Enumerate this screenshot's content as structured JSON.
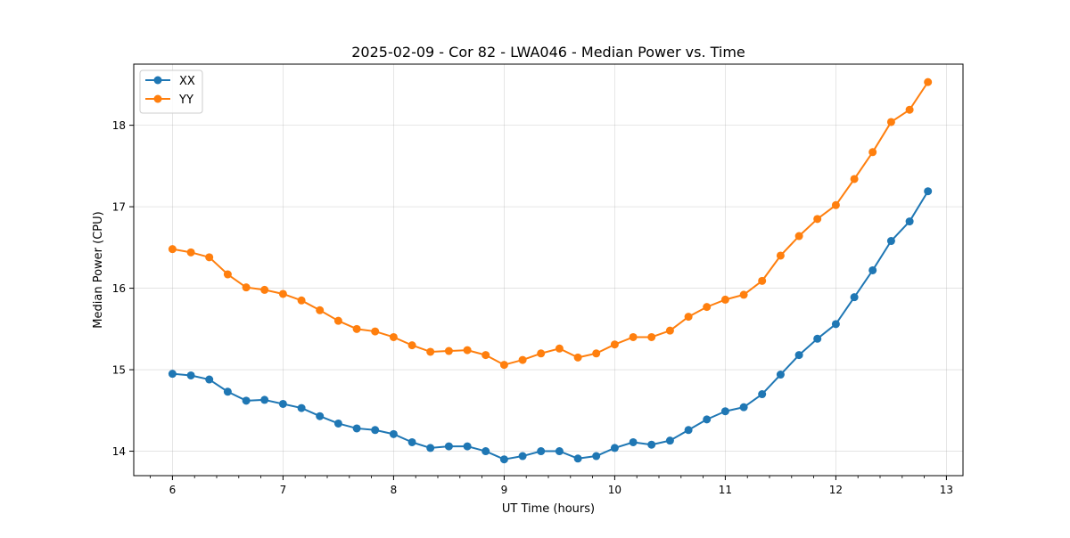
{
  "chart_data": {
    "type": "line",
    "title": "2025-02-09 - Cor 82 - LWA046 - Median Power vs. Time",
    "xlabel": "UT Time (hours)",
    "ylabel": "Median Power (CPU)",
    "xlim": [
      5.65,
      13.15
    ],
    "ylim": [
      13.7,
      18.75
    ],
    "xticks": [
      6,
      7,
      8,
      9,
      10,
      11,
      12,
      13
    ],
    "yticks": [
      14,
      15,
      16,
      17,
      18
    ],
    "grid": true,
    "legend_position": "top-left",
    "x": [
      6.0,
      6.167,
      6.333,
      6.5,
      6.667,
      6.833,
      7.0,
      7.167,
      7.333,
      7.5,
      7.667,
      7.833,
      8.0,
      8.167,
      8.333,
      8.5,
      8.667,
      8.833,
      9.0,
      9.167,
      9.333,
      9.5,
      9.667,
      9.833,
      10.0,
      10.167,
      10.333,
      10.5,
      10.667,
      10.833,
      11.0,
      11.167,
      11.333,
      11.5,
      11.667,
      11.833,
      12.0,
      12.167,
      12.333,
      12.5,
      12.667,
      12.833
    ],
    "series": [
      {
        "name": "XX",
        "color": "#1f77b4",
        "values": [
          14.95,
          14.93,
          14.88,
          14.73,
          14.62,
          14.63,
          14.58,
          14.53,
          14.43,
          14.34,
          14.28,
          14.26,
          14.21,
          14.11,
          14.04,
          14.06,
          14.06,
          14.0,
          13.9,
          13.94,
          14.0,
          14.0,
          13.91,
          13.94,
          14.04,
          14.11,
          14.08,
          14.13,
          14.26,
          14.39,
          14.49,
          14.54,
          14.7,
          14.94,
          15.18,
          15.38,
          15.56,
          15.89,
          16.22,
          16.58,
          16.82,
          17.19
        ]
      },
      {
        "name": "YY",
        "color": "#ff7f0e",
        "values": [
          16.48,
          16.44,
          16.38,
          16.17,
          16.01,
          15.98,
          15.93,
          15.85,
          15.73,
          15.6,
          15.5,
          15.47,
          15.4,
          15.3,
          15.22,
          15.23,
          15.24,
          15.18,
          15.06,
          15.12,
          15.2,
          15.26,
          15.15,
          15.2,
          15.31,
          15.4,
          15.4,
          15.48,
          15.65,
          15.77,
          15.86,
          15.92,
          16.09,
          16.4,
          16.64,
          16.85,
          17.02,
          17.34,
          17.67,
          18.04,
          18.19,
          18.53
        ]
      }
    ]
  }
}
